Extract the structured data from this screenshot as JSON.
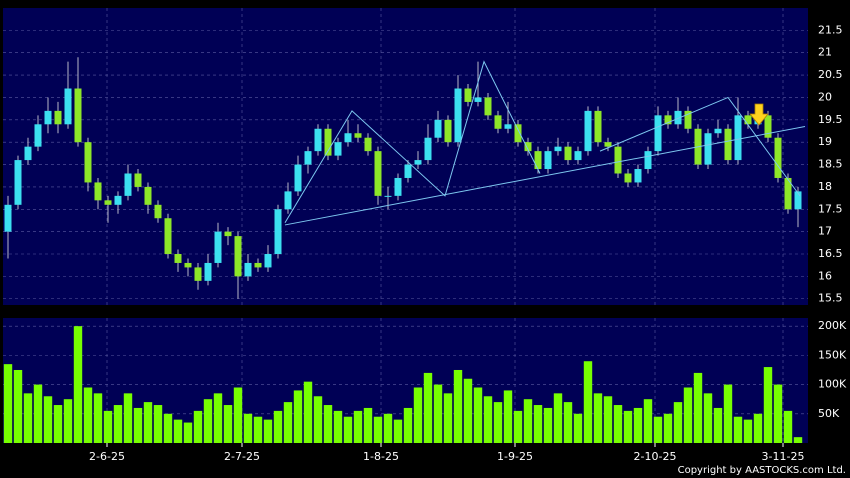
{
  "chart_data": [
    {
      "type": "candlestick",
      "open": [
        17.0,
        17.6,
        18.6,
        18.9,
        19.4,
        19.7,
        19.4,
        20.2,
        19.0,
        18.1,
        17.7,
        17.6,
        17.8,
        18.3,
        18.0,
        17.6,
        17.3,
        16.5,
        16.3,
        16.2,
        15.9,
        16.3,
        17.0,
        16.9,
        16.0,
        16.3,
        16.2,
        16.5,
        17.5,
        17.9,
        18.5,
        18.8,
        19.3,
        18.7,
        19.0,
        19.2,
        19.1,
        18.8,
        17.8,
        17.8,
        18.2,
        18.5,
        18.6,
        19.1,
        19.5,
        19.0,
        20.2,
        19.9,
        20.0,
        19.6,
        19.3,
        19.4,
        19.0,
        18.8,
        18.4,
        18.8,
        18.9,
        18.6,
        18.8,
        19.7,
        19.0,
        18.9,
        18.3,
        18.1,
        18.4,
        18.8,
        19.6,
        19.4,
        19.7,
        19.3,
        18.5,
        19.2,
        19.3,
        18.6,
        19.6,
        19.4,
        19.6,
        19.1,
        18.2,
        17.5
      ],
      "high": [
        17.8,
        18.7,
        19.1,
        19.6,
        20.0,
        19.9,
        20.8,
        20.9,
        19.1,
        18.2,
        17.8,
        17.9,
        18.5,
        18.4,
        18.1,
        17.7,
        17.4,
        16.6,
        16.4,
        16.3,
        16.5,
        17.2,
        17.1,
        17.0,
        16.5,
        16.4,
        16.7,
        17.6,
        18.1,
        18.7,
        18.9,
        19.4,
        19.4,
        19.1,
        19.5,
        19.4,
        19.2,
        18.9,
        18.0,
        18.3,
        18.6,
        18.8,
        19.4,
        19.7,
        19.6,
        20.5,
        20.3,
        20.8,
        20.1,
        19.7,
        19.9,
        19.5,
        19.1,
        18.9,
        18.9,
        19.1,
        19.0,
        18.9,
        19.8,
        19.8,
        19.1,
        19.0,
        18.4,
        18.5,
        18.9,
        19.8,
        19.7,
        20.0,
        19.8,
        19.4,
        19.3,
        19.5,
        19.4,
        20.0,
        19.7,
        19.8,
        19.7,
        19.2,
        18.3,
        18.0
      ],
      "low": [
        16.4,
        17.5,
        18.5,
        18.8,
        19.2,
        19.2,
        19.3,
        18.9,
        17.9,
        17.5,
        17.2,
        17.4,
        17.7,
        17.9,
        17.4,
        17.2,
        16.4,
        16.1,
        16.0,
        15.7,
        15.8,
        16.2,
        16.7,
        15.5,
        15.9,
        16.1,
        16.1,
        16.4,
        17.4,
        17.8,
        18.3,
        18.7,
        18.6,
        18.6,
        18.9,
        19.0,
        18.7,
        17.6,
        17.5,
        17.7,
        18.1,
        18.4,
        18.5,
        19.0,
        18.9,
        18.9,
        19.8,
        19.8,
        19.5,
        19.2,
        19.2,
        18.9,
        18.7,
        18.3,
        18.3,
        18.7,
        18.5,
        18.5,
        18.7,
        18.9,
        18.8,
        18.2,
        18.0,
        18.0,
        18.3,
        18.7,
        19.3,
        19.3,
        19.2,
        18.4,
        18.4,
        19.1,
        18.5,
        18.5,
        19.3,
        19.3,
        19.0,
        18.1,
        17.4,
        17.1
      ],
      "close": [
        17.6,
        18.6,
        18.9,
        19.4,
        19.7,
        19.4,
        20.2,
        19.0,
        18.1,
        17.7,
        17.6,
        17.8,
        18.3,
        18.0,
        17.6,
        17.3,
        16.5,
        16.3,
        16.2,
        15.9,
        16.3,
        17.0,
        16.9,
        16.0,
        16.3,
        16.2,
        16.5,
        17.5,
        17.9,
        18.5,
        18.8,
        19.3,
        18.7,
        19.0,
        19.2,
        19.1,
        18.8,
        17.8,
        17.8,
        18.2,
        18.5,
        18.6,
        19.1,
        19.5,
        19.0,
        20.2,
        19.9,
        20.0,
        19.6,
        19.3,
        19.4,
        19.0,
        18.8,
        18.4,
        18.8,
        18.9,
        18.6,
        18.8,
        19.7,
        19.0,
        18.9,
        18.3,
        18.1,
        18.4,
        18.8,
        19.6,
        19.4,
        19.7,
        19.3,
        18.5,
        19.2,
        19.3,
        18.6,
        19.6,
        19.4,
        19.6,
        19.1,
        18.2,
        17.5,
        17.9
      ],
      "up_color": "#3ce0f0",
      "down_color": "#8ee628",
      "xlim": [
        -0.5,
        80
      ],
      "ylim": [
        15.36,
        22.0
      ],
      "yticks": [
        15.5,
        16,
        16.5,
        17,
        17.5,
        18,
        18.5,
        19,
        19.5,
        20,
        20.5,
        21,
        21.5
      ],
      "grid": true,
      "lines": [
        {
          "color": "#7ec8f0",
          "x": [
            27.7,
            34.4,
            43.7,
            47.6,
            53.2
          ],
          "y": [
            17.2,
            19.7,
            17.8,
            20.8,
            18.3
          ]
        },
        {
          "color": "#7ec8f0",
          "x": [
            27.7,
            79.7
          ],
          "y": [
            17.15,
            19.35
          ]
        },
        {
          "color": "#7ec8f0",
          "x": [
            59.2,
            72.0,
            79.2
          ],
          "y": [
            18.8,
            20.0,
            17.8
          ]
        }
      ]
    },
    {
      "type": "bar",
      "values": [
        135000,
        125000,
        85000,
        100000,
        80000,
        65000,
        75000,
        200000,
        95000,
        85000,
        55000,
        65000,
        85000,
        60000,
        70000,
        65000,
        50000,
        40000,
        35000,
        55000,
        75000,
        85000,
        65000,
        95000,
        50000,
        45000,
        40000,
        55000,
        70000,
        90000,
        105000,
        80000,
        65000,
        55000,
        45000,
        55000,
        60000,
        45000,
        50000,
        40000,
        60000,
        95000,
        120000,
        100000,
        85000,
        125000,
        110000,
        95000,
        80000,
        70000,
        90000,
        55000,
        75000,
        65000,
        60000,
        85000,
        70000,
        50000,
        140000,
        85000,
        80000,
        65000,
        55000,
        60000,
        75000,
        45000,
        50000,
        70000,
        95000,
        120000,
        85000,
        60000,
        100000,
        45000,
        40000,
        50000,
        130000,
        100000,
        55000,
        10000
      ],
      "color": "#77ff00",
      "xlim": [
        -0.5,
        80
      ],
      "ylim": [
        0,
        214000
      ],
      "yticks": [
        {
          "value": 50000,
          "label": "50K"
        },
        {
          "value": 100000,
          "label": "100K"
        },
        {
          "value": 150000,
          "label": "150K"
        },
        {
          "value": 200000,
          "label": "200K"
        }
      ],
      "xticks": [
        {
          "value": 9.9,
          "label": "2-6-25"
        },
        {
          "value": 23.4,
          "label": "2-7-25"
        },
        {
          "value": 37.3,
          "label": "1-8-25"
        },
        {
          "value": 50.7,
          "label": "1-9-25"
        },
        {
          "value": 64.7,
          "label": "2-10-25"
        },
        {
          "value": 77.5,
          "label": "3-11-25"
        }
      ],
      "grid": true
    }
  ],
  "copyright": "Copyright by AASTOCKS.com Ltd."
}
